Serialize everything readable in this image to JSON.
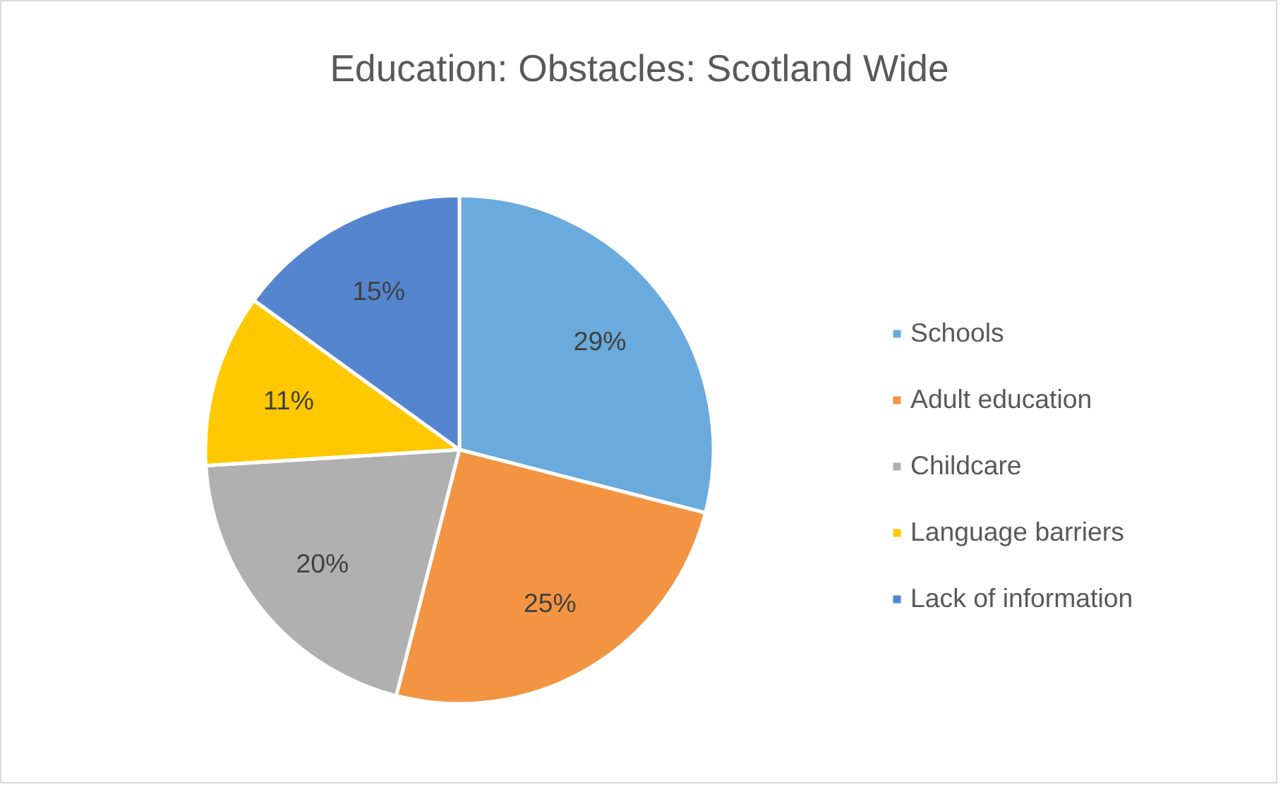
{
  "chart_data": {
    "type": "pie",
    "title": "Education: Obstacles: Scotland Wide",
    "categories": [
      "Schools",
      "Adult education",
      "Childcare",
      "Language barriers",
      "Lack of information"
    ],
    "values": [
      29,
      25,
      20,
      11,
      15
    ],
    "colors": [
      "#6aaadc",
      "#f39443",
      "#b0b0b0",
      "#ffc800",
      "#5585cf"
    ],
    "value_labels": [
      "29%",
      "25%",
      "20%",
      "11%",
      "15%"
    ],
    "legend": "right"
  }
}
